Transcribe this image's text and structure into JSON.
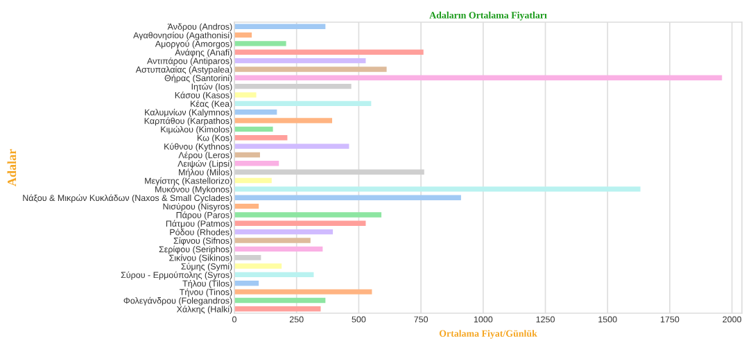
{
  "chart_data": {
    "type": "bar",
    "orientation": "horizontal",
    "title": "Adaların Ortalama Fiyatları",
    "xlabel": "Ortalama Fiyat/Günlük",
    "ylabel": "Adalar",
    "categories": [
      "Άνδρου (Andros)",
      "Αγαθονησίου (Agathonisi)",
      "Αμοργού (Amorgos)",
      "Ανάφης (Anafi)",
      "Αντιπάρου (Antiparos)",
      "Αστυπαλαίας (Astypalea)",
      "Θήρας (Santorini)",
      "Ιητών (Ios)",
      "Κάσου (Kasos)",
      "Κέας (Kea)",
      "Καλυμνίων (Kalymnos)",
      "Καρπάθου (Karpathos)",
      "Κιμώλου (Kimolos)",
      "Κω (Kos)",
      "Κύθνου (Kythnos)",
      "Λέρου (Leros)",
      "Λειψών (Lipsi)",
      "Μήλου (Milos)",
      "Μεγίστης (Kastellorizo)",
      "Μυκόνου (Mykonos)",
      "Νάξου & Μικρών Κυκλάδων (Naxos & Small Cyclades)",
      "Νισύρου (Nisyros)",
      "Πάρου (Paros)",
      "Πάτμου (Patmos)",
      "Ρόδου (Rhodes)",
      "Σίφνου (Sifnos)",
      "Σερίφου (Seriphos)",
      "Σικίνου (Sikinos)",
      "Σύμης (Symi)",
      "Σύρου - Ερμούπολης (Syros)",
      "Τήλου (Tilos)",
      "Τήνου (Tinos)",
      "Φολεγάνδρου (Folegandros)",
      "Χάλκης (Halki)"
    ],
    "values": [
      366,
      70,
      208,
      760,
      528,
      612,
      1960,
      470,
      88,
      550,
      171,
      393,
      155,
      213,
      461,
      103,
      179,
      763,
      150,
      1632,
      911,
      98,
      591,
      528,
      396,
      306,
      355,
      107,
      190,
      319,
      98,
      553,
      366,
      347
    ],
    "colors": [
      "#a1c9f4",
      "#ffb482",
      "#8de5a1",
      "#ff9f9b",
      "#d0bbff",
      "#debb9b",
      "#fab0e4",
      "#cfcfcf",
      "#fffea3",
      "#b9f2f0",
      "#a1c9f4",
      "#ffb482",
      "#8de5a1",
      "#ff9f9b",
      "#d0bbff",
      "#debb9b",
      "#fab0e4",
      "#cfcfcf",
      "#fffea3",
      "#b9f2f0",
      "#a1c9f4",
      "#ffb482",
      "#8de5a1",
      "#ff9f9b",
      "#d0bbff",
      "#debb9b",
      "#fab0e4",
      "#cfcfcf",
      "#fffea3",
      "#b9f2f0",
      "#a1c9f4",
      "#ffb482",
      "#8de5a1",
      "#ff9f9b"
    ],
    "xlim": [
      0,
      2040
    ],
    "xticks": [
      0,
      250,
      500,
      750,
      1000,
      1250,
      1500,
      1750,
      2000
    ],
    "grid": "x",
    "legend": false
  }
}
